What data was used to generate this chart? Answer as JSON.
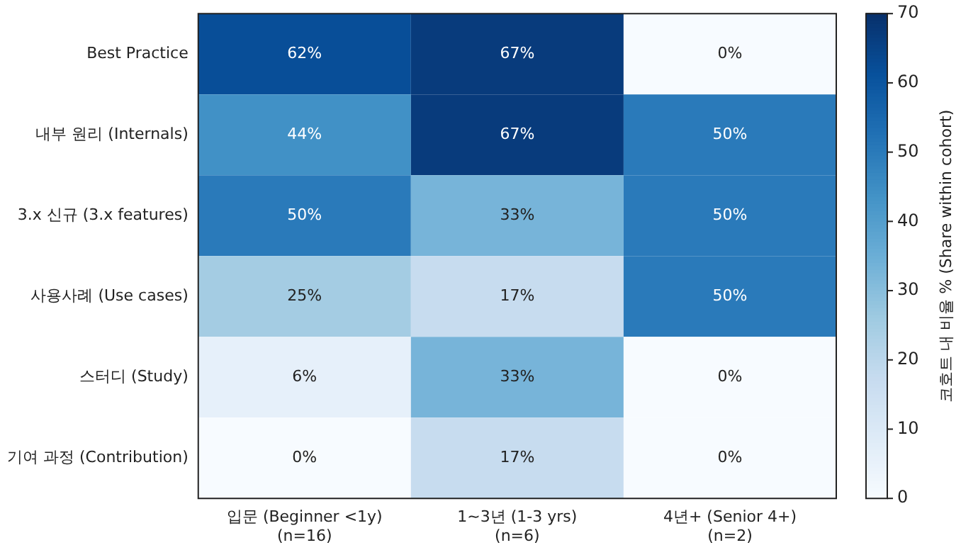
{
  "chart_data": {
    "type": "heatmap",
    "categories": [
      "입문 (Beginner <1y)\n(n=16)",
      "1~3년 (1-3 yrs)\n(n=6)",
      "4년+ (Senior 4+)\n(n=2)"
    ],
    "y_categories": [
      "Best Practice",
      "내부 원리 (Internals)",
      "3.x 신규 (3.x features)",
      "사용사례 (Use cases)",
      "스터디 (Study)",
      "기여 과정 (Contribution)"
    ],
    "cells": [
      [
        62,
        67,
        0
      ],
      [
        44,
        67,
        50
      ],
      [
        50,
        33,
        50
      ],
      [
        25,
        17,
        50
      ],
      [
        6,
        33,
        0
      ],
      [
        0,
        17,
        0
      ]
    ],
    "cell_labels": [
      [
        "62%",
        "67%",
        "0%"
      ],
      [
        "44%",
        "67%",
        "50%"
      ],
      [
        "50%",
        "33%",
        "50%"
      ],
      [
        "25%",
        "17%",
        "50%"
      ],
      [
        "6%",
        "33%",
        "0%"
      ],
      [
        "0%",
        "17%",
        "0%"
      ]
    ],
    "clabel": "코호트 내 비율 % (Share within cohort)",
    "clim": [
      0,
      70
    ],
    "cticks": [
      0,
      10,
      20,
      30,
      40,
      50,
      60,
      70
    ]
  }
}
